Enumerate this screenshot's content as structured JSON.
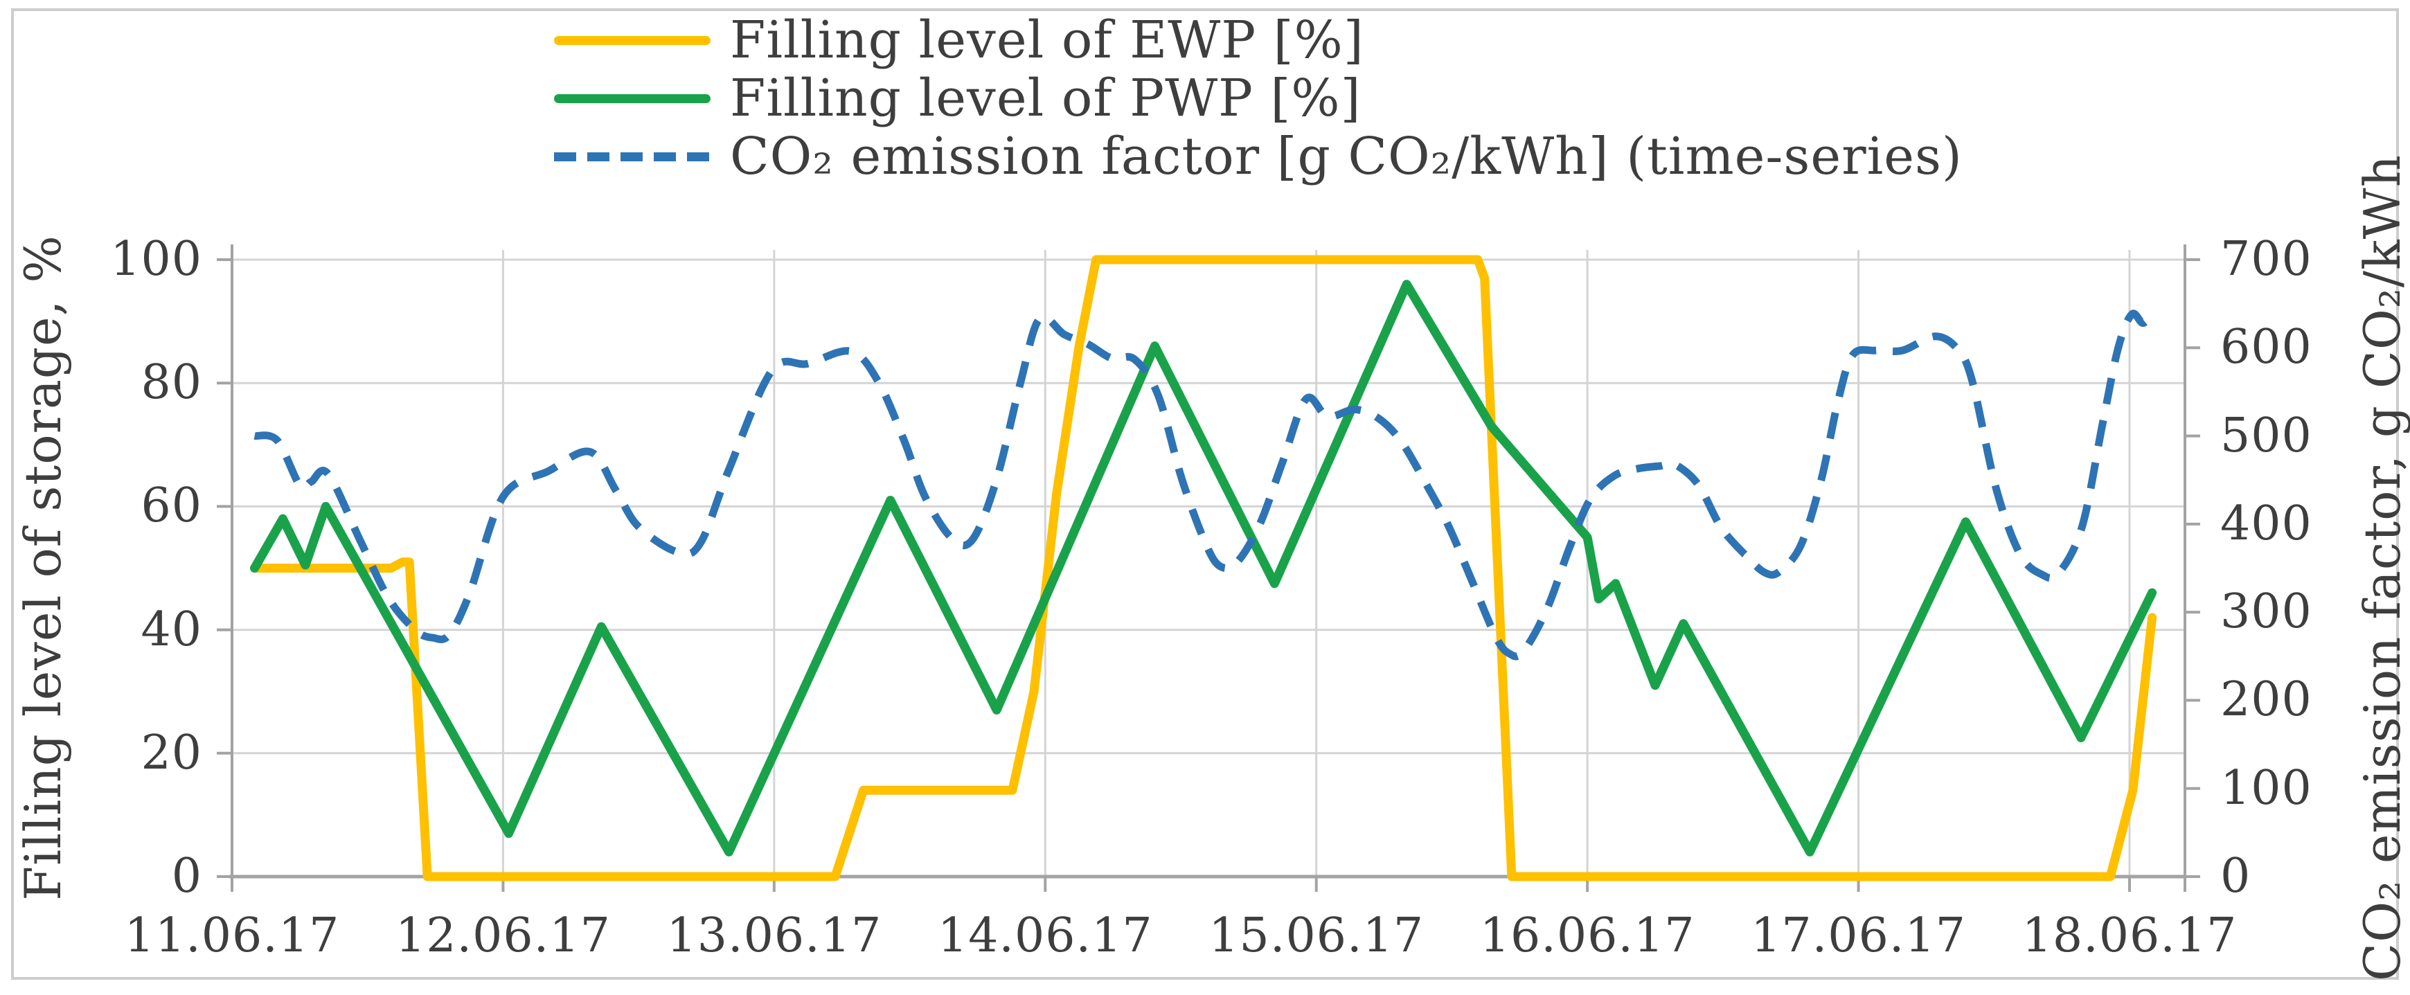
{
  "chart_data": {
    "type": "line",
    "title": "",
    "legend_position": "top",
    "grid": true,
    "x_axis": {
      "labels": [
        "11.06.17",
        "12.06.17",
        "13.06.17",
        "14.06.17",
        "15.06.17",
        "16.06.17",
        "17.06.17",
        "18.06.17"
      ],
      "unit": "date",
      "hours_per_division": 24
    },
    "y_left": {
      "label": "Filling level of storage, %",
      "ticks": [
        0,
        20,
        40,
        60,
        80,
        100
      ],
      "range": [
        0,
        100
      ]
    },
    "y_right": {
      "label": "CO₂ emission factor, g CO₂/kWh",
      "ticks": [
        0,
        100,
        200,
        300,
        400,
        500,
        600,
        700
      ],
      "range": [
        0,
        700
      ]
    },
    "series": [
      {
        "name": "Filling level of EWP [%]",
        "axis": "left",
        "style": "solid",
        "color_key": "ewp",
        "points_t_hours_value": [
          [
            2,
            50
          ],
          [
            14.1,
            50
          ],
          [
            15.1,
            51
          ],
          [
            15.7,
            51
          ],
          [
            17.3,
            0
          ],
          [
            53.4,
            0
          ],
          [
            55.9,
            14
          ],
          [
            69.1,
            14
          ],
          [
            71,
            30
          ],
          [
            73,
            62
          ],
          [
            75,
            86
          ],
          [
            76.5,
            100
          ],
          [
            110.3,
            100
          ],
          [
            110.9,
            97
          ],
          [
            113.3,
            0
          ],
          [
            166.3,
            0
          ],
          [
            168.3,
            14
          ],
          [
            170,
            42
          ]
        ]
      },
      {
        "name": "Filling level of PWP [%]",
        "axis": "left",
        "style": "solid",
        "color_key": "pwp",
        "points_t_hours_value": [
          [
            2,
            50
          ],
          [
            4.5,
            58
          ],
          [
            6.5,
            50.5
          ],
          [
            8.3,
            60
          ],
          [
            24.5,
            7
          ],
          [
            32.7,
            40.5
          ],
          [
            44,
            4
          ],
          [
            58.3,
            61
          ],
          [
            67.7,
            27
          ],
          [
            81.7,
            86
          ],
          [
            92.3,
            47.5
          ],
          [
            104,
            96
          ],
          [
            111.5,
            73
          ],
          [
            120,
            55
          ],
          [
            121,
            45
          ],
          [
            122.5,
            47.5
          ],
          [
            126,
            31
          ],
          [
            128.5,
            41
          ],
          [
            139.7,
            4
          ],
          [
            153.5,
            57.5
          ],
          [
            163.7,
            22.5
          ],
          [
            170,
            46
          ]
        ]
      },
      {
        "name": "CO₂ emission factor [g CO₂/kWh] (time-series)",
        "axis": "right",
        "style": "dashed",
        "color_key": "co2",
        "points_t_hours_value": [
          [
            2,
            500
          ],
          [
            4,
            495
          ],
          [
            6,
            444
          ],
          [
            7,
            448
          ],
          [
            8.5,
            457
          ],
          [
            11.4,
            380
          ],
          [
            13.9,
            315
          ],
          [
            16.3,
            279
          ],
          [
            17.8,
            271
          ],
          [
            19.2,
            274
          ],
          [
            21,
            320
          ],
          [
            24,
            431
          ],
          [
            28,
            460
          ],
          [
            31.7,
            482
          ],
          [
            34,
            438
          ],
          [
            36,
            397
          ],
          [
            39.5,
            368
          ],
          [
            41.5,
            379
          ],
          [
            44,
            462
          ],
          [
            47.8,
            574
          ],
          [
            51,
            582
          ],
          [
            54.8,
            596
          ],
          [
            57.2,
            562
          ],
          [
            59.5,
            495
          ],
          [
            61.4,
            430
          ],
          [
            63.8,
            383
          ],
          [
            65.6,
            383
          ],
          [
            67.7,
            451
          ],
          [
            69.8,
            560
          ],
          [
            71.5,
            633
          ],
          [
            73.7,
            615
          ],
          [
            75.8,
            604
          ],
          [
            77.9,
            588
          ],
          [
            79.9,
            587
          ],
          [
            82,
            546
          ],
          [
            84.1,
            451
          ],
          [
            86.2,
            378
          ],
          [
            87.5,
            352
          ],
          [
            89,
            357
          ],
          [
            91,
            400
          ],
          [
            93,
            470
          ],
          [
            95.1,
            542
          ],
          [
            97,
            522
          ],
          [
            99.4,
            530
          ],
          [
            101.5,
            520
          ],
          [
            103.5,
            494
          ],
          [
            105.7,
            446
          ],
          [
            107.7,
            398
          ],
          [
            109.8,
            335
          ],
          [
            111.9,
            272
          ],
          [
            113.1,
            253
          ],
          [
            114.3,
            255
          ],
          [
            116.4,
            303
          ],
          [
            118.5,
            376
          ],
          [
            120.3,
            429
          ],
          [
            122.4,
            455
          ],
          [
            124.5,
            463
          ],
          [
            126.5,
            466
          ],
          [
            127.7,
            468
          ],
          [
            129.8,
            445
          ],
          [
            131.8,
            397
          ],
          [
            133.9,
            366
          ],
          [
            135.7,
            345
          ],
          [
            137,
            346
          ],
          [
            138.9,
            376
          ],
          [
            140.7,
            450
          ],
          [
            142.2,
            540
          ],
          [
            143.5,
            592
          ],
          [
            145.5,
            597
          ],
          [
            147.9,
            597
          ],
          [
            150.8,
            613
          ],
          [
            152.8,
            598
          ],
          [
            154.1,
            561
          ],
          [
            156.2,
            440
          ],
          [
            158.3,
            366
          ],
          [
            160.2,
            343
          ],
          [
            161.7,
            344
          ],
          [
            163.8,
            397
          ],
          [
            165.6,
            513
          ],
          [
            167,
            600
          ],
          [
            168.2,
            638
          ],
          [
            169.2,
            628
          ],
          [
            170.1,
            641
          ]
        ]
      }
    ]
  },
  "colors": {
    "ewp": "#FFC000",
    "pwp": "#1AA24B",
    "co2": "#2E74B5",
    "gridline": "#D4D4D4",
    "axis": "#A3A3A3",
    "text": "#3E3E3E",
    "frame": "#CDCDCD",
    "background": "#FFFFFF"
  }
}
